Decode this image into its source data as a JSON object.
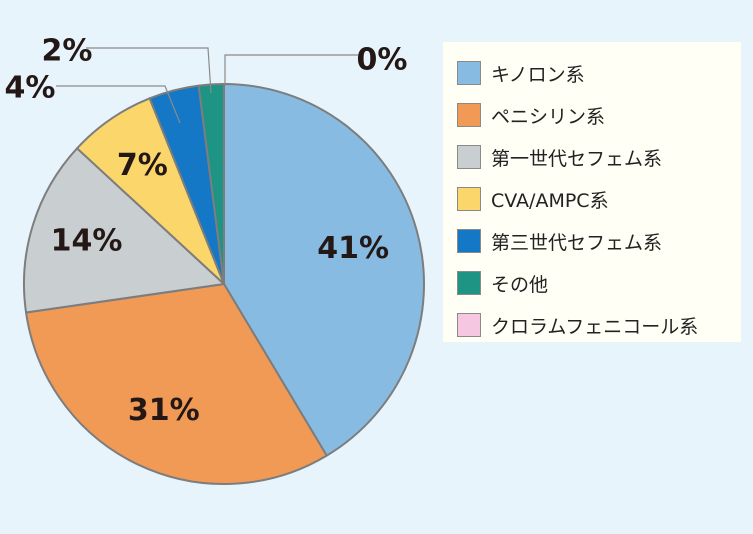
{
  "chart_data": {
    "type": "pie",
    "slices": [
      {
        "label": "キノロン系",
        "value": 41,
        "display": "41%",
        "color": "#87bbe2"
      },
      {
        "label": "ペニシリン系",
        "value": 31,
        "display": "31%",
        "color": "#f19a56"
      },
      {
        "label": "第一世代セフェム系",
        "value": 14,
        "display": "14%",
        "color": "#c9ced0"
      },
      {
        "label": "CVA/AMPC系",
        "value": 7,
        "display": "7%",
        "color": "#fbd66b"
      },
      {
        "label": "第三世代セフェム系",
        "value": 4,
        "display": "4%",
        "color": "#1478c6"
      },
      {
        "label": "その他",
        "value": 2,
        "display": "2%",
        "color": "#1e9484"
      },
      {
        "label": "クロラムフェニコール系",
        "value": 0,
        "display": "0%",
        "color": "#f6c7e0"
      }
    ],
    "start_angle": "12 o'clock",
    "direction": "clockwise",
    "legend_position": "right"
  }
}
